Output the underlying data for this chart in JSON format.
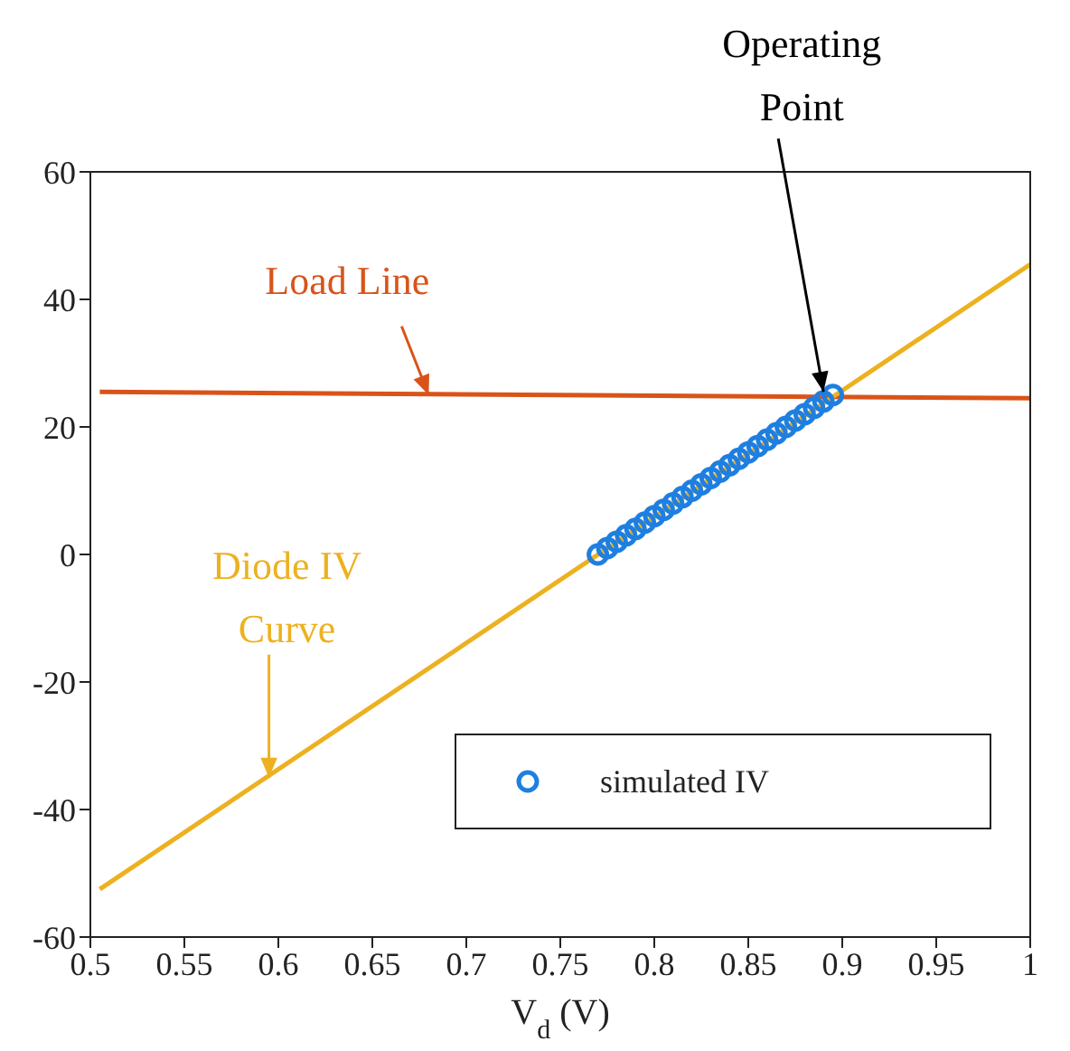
{
  "chart_data": {
    "type": "line",
    "xlabel": "V$_{d}$ (V)",
    "series": [
      {
        "color": "#d95319",
        "x": [
          0.505,
          1
        ],
        "values": [
          25.5,
          24.5
        ],
        "marker": "none"
      },
      {
        "color": "#edb120",
        "x": [
          0.505,
          1
        ],
        "values": [
          -52.5,
          45.5
        ],
        "marker": "none"
      },
      {
        "type": "scatter",
        "name": "simulated IV",
        "color": "#1f7fe0",
        "marker": "circle",
        "x": [
          0.77,
          0.775,
          0.78,
          0.785,
          0.79,
          0.795,
          0.8,
          0.805,
          0.81,
          0.815,
          0.82,
          0.825,
          0.83,
          0.835,
          0.84,
          0.845,
          0.85,
          0.855,
          0.86,
          0.865,
          0.87,
          0.875,
          0.88,
          0.885,
          0.89,
          0.895
        ],
        "values": [
          0,
          1,
          2,
          3,
          4,
          5,
          6,
          7,
          8,
          9,
          10,
          11,
          12,
          13,
          14,
          15,
          16,
          17,
          18,
          19,
          20,
          21,
          22,
          23,
          24,
          25
        ]
      }
    ],
    "annotations": [
      {
        "text": "Operating Point",
        "x": 0.89,
        "y": 25.5
      },
      {
        "text": "Load Line",
        "x": 0.68,
        "y": 25
      },
      {
        "text": "Diode IV Curve",
        "x": 0.595,
        "y": -35
      }
    ],
    "xlim": [
      0.5,
      1
    ],
    "xticks": [
      0.5,
      0.55,
      0.6,
      0.65,
      0.7,
      0.75,
      0.8,
      0.85,
      0.9,
      0.95,
      1
    ],
    "ylim": [
      -60,
      60
    ],
    "yticks": [
      -60,
      -40,
      -20,
      0,
      20,
      40,
      60
    ],
    "grid": false,
    "legend": "bottom right"
  }
}
